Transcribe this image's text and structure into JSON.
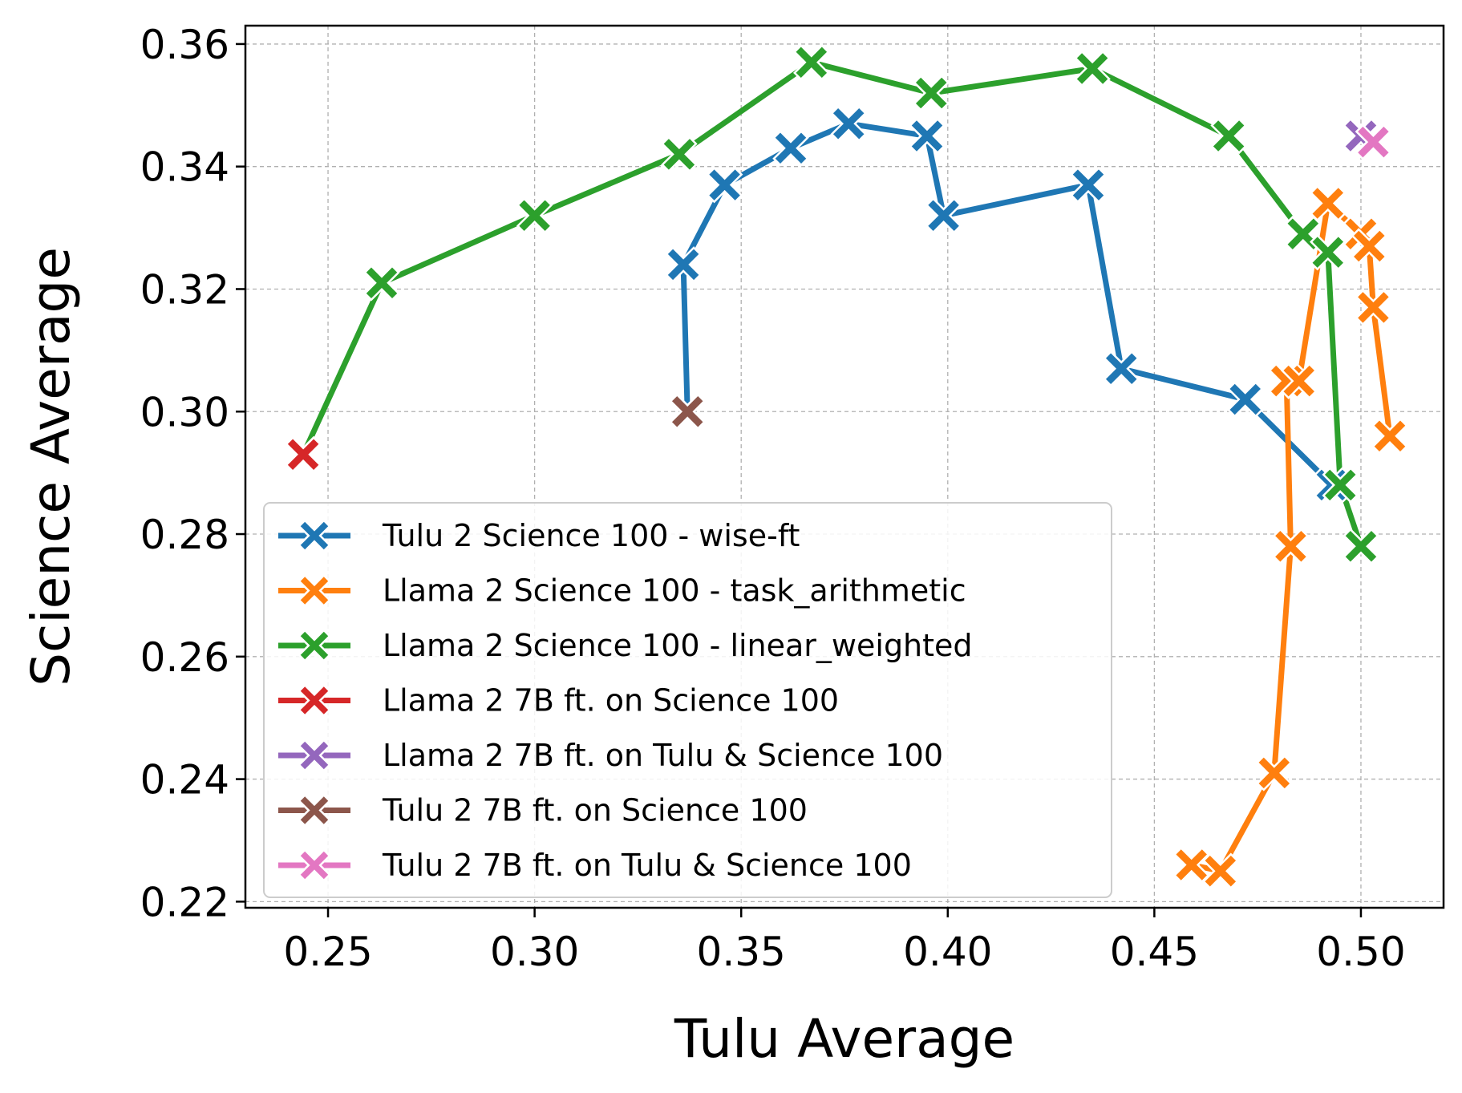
{
  "chart_data": {
    "type": "line",
    "title": "",
    "xlabel": "Tulu Average",
    "ylabel": "Science Average",
    "xlim": [
      0.23,
      0.52
    ],
    "ylim": [
      0.219,
      0.363
    ],
    "xticks": [
      0.25,
      0.3,
      0.35,
      0.4,
      0.45,
      0.5
    ],
    "yticks": [
      0.22,
      0.24,
      0.26,
      0.28,
      0.3,
      0.32,
      0.34,
      0.36
    ],
    "xtick_labels": [
      "0.25",
      "0.30",
      "0.35",
      "0.40",
      "0.45",
      "0.50"
    ],
    "ytick_labels": [
      "0.22",
      "0.24",
      "0.26",
      "0.28",
      "0.30",
      "0.32",
      "0.34",
      "0.36"
    ],
    "grid": true,
    "legend_position": "lower-left",
    "marker": "X",
    "series": [
      {
        "name": "Tulu 2 Science 100 - wise-ft",
        "color": "#1f77b4",
        "points": [
          [
            0.337,
            0.3
          ],
          [
            0.336,
            0.324
          ],
          [
            0.346,
            0.337
          ],
          [
            0.362,
            0.343
          ],
          [
            0.376,
            0.347
          ],
          [
            0.395,
            0.345
          ],
          [
            0.399,
            0.332
          ],
          [
            0.434,
            0.337
          ],
          [
            0.442,
            0.307
          ],
          [
            0.472,
            0.302
          ],
          [
            0.493,
            0.288
          ]
        ]
      },
      {
        "name": "Llama 2 Science 100 - task_arithmetic",
        "color": "#ff7f0e",
        "points": [
          [
            0.459,
            0.226
          ],
          [
            0.466,
            0.225
          ],
          [
            0.479,
            0.241
          ],
          [
            0.483,
            0.278
          ],
          [
            0.482,
            0.305
          ],
          [
            0.485,
            0.305
          ],
          [
            0.492,
            0.334
          ],
          [
            0.5,
            0.329
          ],
          [
            0.502,
            0.327
          ],
          [
            0.503,
            0.317
          ],
          [
            0.507,
            0.296
          ]
        ]
      },
      {
        "name": "Llama 2 Science 100 - linear_weighted",
        "color": "#2ca02c",
        "points": [
          [
            0.244,
            0.293
          ],
          [
            0.263,
            0.321
          ],
          [
            0.3,
            0.332
          ],
          [
            0.335,
            0.342
          ],
          [
            0.367,
            0.357
          ],
          [
            0.396,
            0.352
          ],
          [
            0.435,
            0.356
          ],
          [
            0.468,
            0.345
          ],
          [
            0.486,
            0.329
          ],
          [
            0.492,
            0.326
          ],
          [
            0.495,
            0.288
          ],
          [
            0.5,
            0.278
          ]
        ]
      },
      {
        "name": "Llama 2 7B ft. on Science 100",
        "color": "#d62728",
        "points": [
          [
            0.244,
            0.293
          ]
        ]
      },
      {
        "name": "Llama 2 7B ft. on Tulu & Science 100",
        "color": "#9467bd",
        "points": [
          [
            0.5,
            0.345
          ]
        ]
      },
      {
        "name": "Tulu 2 7B ft. on Science 100",
        "color": "#8c564b",
        "points": [
          [
            0.337,
            0.3
          ]
        ]
      },
      {
        "name": "Tulu 2 7B ft. on Tulu & Science 100",
        "color": "#e377c2",
        "points": [
          [
            0.503,
            0.344
          ]
        ]
      }
    ]
  }
}
